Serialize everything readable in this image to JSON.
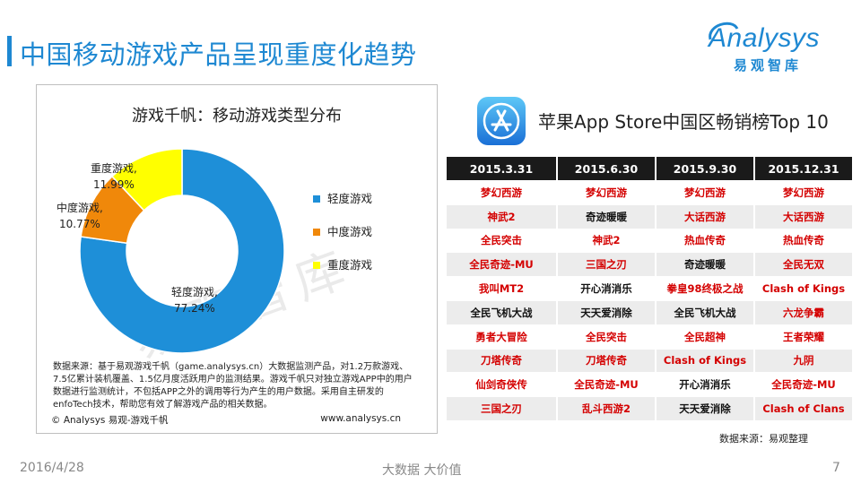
{
  "header": {
    "title": "中国移动游戏产品呈现重度化趋势",
    "logo_main": "Analysys",
    "logo_sub": "易观智库"
  },
  "colors": {
    "accent": "#1E88D2",
    "light": "#1E8FD8",
    "medium": "#F0880A",
    "heavy": "#FFFF00",
    "red_text": "#D40000"
  },
  "chart_data": {
    "type": "pie",
    "title": "游戏千帆：移动游戏类型分布",
    "slices": [
      {
        "name": "轻度游戏",
        "value": 77.24,
        "label": "轻度游戏,",
        "pct": "77.24%"
      },
      {
        "name": "中度游戏",
        "value": 10.77,
        "label": "中度游戏,",
        "pct": "10.77%"
      },
      {
        "name": "重度游戏",
        "value": 11.99,
        "label": "重度游戏,",
        "pct": "11.99%"
      }
    ],
    "legend": [
      "轻度游戏",
      "中度游戏",
      "重度游戏"
    ],
    "legend_position": "right"
  },
  "watermark": "易观智库",
  "chart_box": {
    "source_note": "数据来源：基于易观游戏千帆（game.analysys.cn）大数据监测产品，对1.2万款游戏、7.5亿累计装机覆盖、1.5亿月度活跃用户的监测结果。游戏千帆只对独立游戏APP中的用户数据进行监测统计，不包括APP之外的调用等行为产生的用户数据。采用自主研发的enfoTech技术，帮助您有效了解游戏产品的相关数据。",
    "copyright": "© Analysys 易观-游戏千帆",
    "site": "www.analysys.cn"
  },
  "ranking": {
    "title": "苹果App Store中国区畅销榜Top 10",
    "headers": [
      "2015.3.31",
      "2015.6.30",
      "2015.9.30",
      "2015.12.31"
    ],
    "rows": [
      [
        {
          "t": "梦幻西游",
          "c": "red"
        },
        {
          "t": "梦幻西游",
          "c": "red"
        },
        {
          "t": "梦幻西游",
          "c": "red"
        },
        {
          "t": "梦幻西游",
          "c": "red"
        }
      ],
      [
        {
          "t": "神武2",
          "c": "red"
        },
        {
          "t": "奇迹暖暖",
          "c": "black"
        },
        {
          "t": "大话西游",
          "c": "red"
        },
        {
          "t": "大话西游",
          "c": "red"
        }
      ],
      [
        {
          "t": "全民突击",
          "c": "red"
        },
        {
          "t": "神武2",
          "c": "red"
        },
        {
          "t": "热血传奇",
          "c": "red"
        },
        {
          "t": "热血传奇",
          "c": "red"
        }
      ],
      [
        {
          "t": "全民奇迹-MU",
          "c": "red"
        },
        {
          "t": "三国之刃",
          "c": "red"
        },
        {
          "t": "奇迹暖暖",
          "c": "black"
        },
        {
          "t": "全民无双",
          "c": "red"
        }
      ],
      [
        {
          "t": "我叫MT2",
          "c": "red"
        },
        {
          "t": "开心消消乐",
          "c": "black"
        },
        {
          "t": "拳皇98终极之战",
          "c": "red"
        },
        {
          "t": "Clash of Kings",
          "c": "red"
        }
      ],
      [
        {
          "t": "全民飞机大战",
          "c": "black"
        },
        {
          "t": "天天爱消除",
          "c": "black"
        },
        {
          "t": "全民飞机大战",
          "c": "black"
        },
        {
          "t": "六龙争霸",
          "c": "red"
        }
      ],
      [
        {
          "t": "勇者大冒险",
          "c": "red"
        },
        {
          "t": "全民突击",
          "c": "red"
        },
        {
          "t": "全民超神",
          "c": "red"
        },
        {
          "t": "王者荣耀",
          "c": "red"
        }
      ],
      [
        {
          "t": "刀塔传奇",
          "c": "red"
        },
        {
          "t": "刀塔传奇",
          "c": "red"
        },
        {
          "t": "Clash of Kings",
          "c": "red"
        },
        {
          "t": "九阴",
          "c": "red"
        }
      ],
      [
        {
          "t": "仙剑奇侠传",
          "c": "red"
        },
        {
          "t": "全民奇迹-MU",
          "c": "red"
        },
        {
          "t": "开心消消乐",
          "c": "black"
        },
        {
          "t": "全民奇迹-MU",
          "c": "red"
        }
      ],
      [
        {
          "t": "三国之刃",
          "c": "red"
        },
        {
          "t": "乱斗西游2",
          "c": "red"
        },
        {
          "t": "天天爱消除",
          "c": "black"
        },
        {
          "t": "Clash of Clans",
          "c": "red"
        }
      ]
    ],
    "source": "数据来源：易观整理"
  },
  "footer": {
    "date": "2016/4/28",
    "center": "大数据   大价值",
    "page": "7"
  }
}
